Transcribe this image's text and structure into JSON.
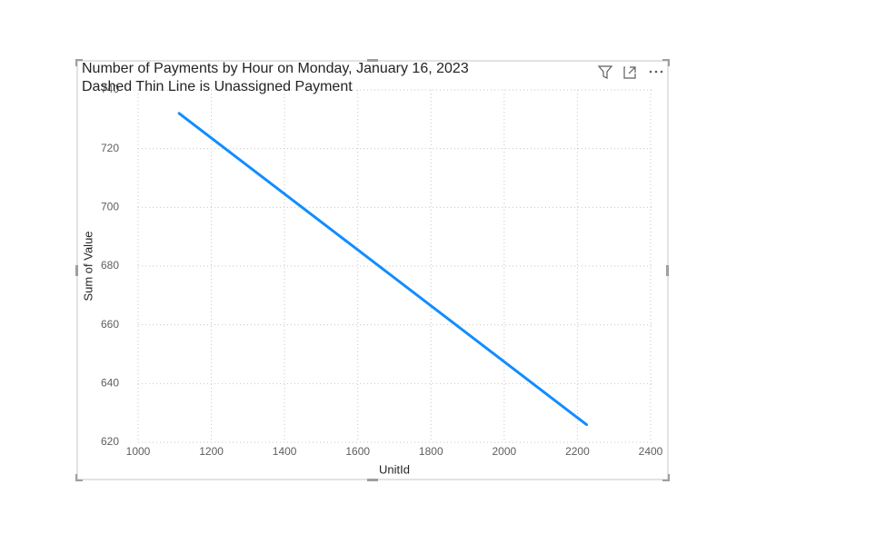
{
  "chart_data": {
    "type": "line",
    "title": "Number of Payments by Hour on Monday, January 16, 2023",
    "subtitle": "Dashed Thin Line is Unassigned Payment",
    "x_label": "UnitId",
    "y_label": "Sum of Value",
    "x": [
      1112,
      2225
    ],
    "values": [
      732,
      626
    ],
    "color": "#118dff",
    "xlim": [
      1000,
      2400
    ],
    "xticks": [
      1000,
      1200,
      1400,
      1600,
      1800,
      2000,
      2200,
      2400
    ],
    "ylim": [
      620,
      740
    ],
    "yticks": [
      620,
      640,
      660,
      680,
      700,
      720,
      740
    ],
    "grid": true
  }
}
